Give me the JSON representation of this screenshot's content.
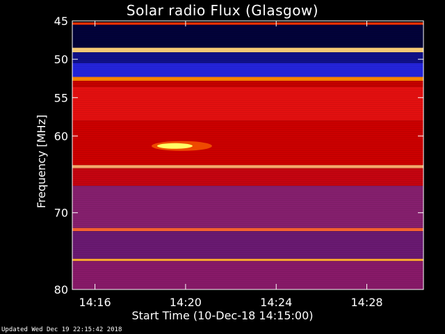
{
  "chart_data": {
    "type": "heatmap",
    "title": "Solar radio Flux (Glasgow)",
    "xlabel": "Start Time (10-Dec-18 14:15:00)",
    "ylabel": "Frequency [MHz]",
    "ylim": [
      45,
      80
    ],
    "xlim": [
      "14:15:00",
      "14:30:30"
    ],
    "y_ticks": [
      "45",
      "50",
      "55",
      "60",
      "70",
      "80"
    ],
    "x_ticks": [
      "14:16",
      "14:20",
      "14:24",
      "14:28"
    ],
    "colormap": [
      "#000022",
      "#1a1acc",
      "#7a1a88",
      "#cc0000",
      "#ff2200",
      "#ffaa00",
      "#ffff88"
    ],
    "bands": [
      {
        "from": 45.2,
        "to": 45.5,
        "color": "#ff3300"
      },
      {
        "from": 45.5,
        "to": 48.5,
        "color": "#02023a"
      },
      {
        "from": 48.5,
        "to": 49.1,
        "color": "#ffd27a"
      },
      {
        "from": 49.1,
        "to": 50.5,
        "color": "#10108a"
      },
      {
        "from": 50.5,
        "to": 52.3,
        "color": "#2525e0"
      },
      {
        "from": 52.3,
        "to": 52.8,
        "color": "#ff8800"
      },
      {
        "from": 52.8,
        "to": 53.6,
        "color": "#c80000"
      },
      {
        "from": 53.6,
        "to": 58.0,
        "color": "#e81010"
      },
      {
        "from": 58.0,
        "to": 63.8,
        "color": "#d00000"
      },
      {
        "from": 63.8,
        "to": 64.2,
        "color": "#ffb070"
      },
      {
        "from": 64.2,
        "to": 66.5,
        "color": "#c80410"
      },
      {
        "from": 66.5,
        "to": 72.0,
        "color": "#882070"
      },
      {
        "from": 72.0,
        "to": 72.4,
        "color": "#ff6630"
      },
      {
        "from": 72.4,
        "to": 76.0,
        "color": "#6c1a74"
      },
      {
        "from": 76.0,
        "to": 76.3,
        "color": "#ffaa33"
      },
      {
        "from": 76.3,
        "to": 80.0,
        "color": "#8a1a6a"
      }
    ],
    "burst": {
      "time_start": "14:18:30",
      "time_end": "14:21:10",
      "freq_center": 61.3,
      "color": "#ffff66"
    }
  },
  "footer": "Updated Wed Dec 19 22:15:42 2018"
}
